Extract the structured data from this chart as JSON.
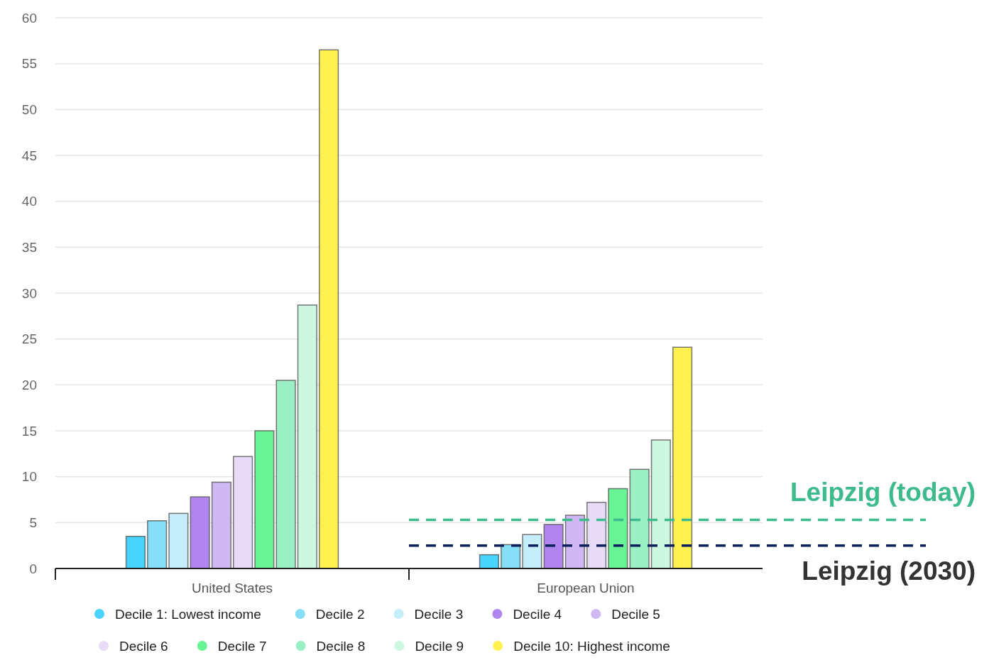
{
  "chart_data": {
    "type": "bar",
    "categories": [
      "United States",
      "European Union"
    ],
    "series": [
      {
        "name": "Decile 1: Lowest income",
        "color": "#48d4fc",
        "values": [
          3.5,
          1.5
        ]
      },
      {
        "name": "Decile 2",
        "color": "#86def7",
        "values": [
          5.2,
          2.6
        ]
      },
      {
        "name": "Decile 3",
        "color": "#c6edfa",
        "values": [
          6.0,
          3.7
        ]
      },
      {
        "name": "Decile 4",
        "color": "#b085ee",
        "values": [
          7.8,
          4.8
        ]
      },
      {
        "name": "Decile 5",
        "color": "#d0b8f4",
        "values": [
          9.4,
          5.8
        ]
      },
      {
        "name": "Decile 6",
        "color": "#e8dbf8",
        "values": [
          12.2,
          7.2
        ]
      },
      {
        "name": "Decile 7",
        "color": "#68f494",
        "values": [
          15.0,
          8.7
        ]
      },
      {
        "name": "Decile 8",
        "color": "#9af0c4",
        "values": [
          20.5,
          10.8
        ]
      },
      {
        "name": "Decile 9",
        "color": "#cdf7e1",
        "values": [
          28.7,
          14.0
        ]
      },
      {
        "name": "Decile 10: Highest income",
        "color": "#fff250",
        "values": [
          56.5,
          24.1
        ]
      }
    ],
    "ylim": [
      0,
      60
    ],
    "yticks": [
      0,
      5,
      10,
      15,
      20,
      25,
      30,
      35,
      40,
      45,
      50,
      55,
      60
    ],
    "grid": "y",
    "legend": "bottom",
    "ref_lines": [
      {
        "axis": "y",
        "value": 5.3,
        "label": "Leipzig (today)",
        "color": "#3dbb8c",
        "line_style": "dashed"
      },
      {
        "axis": "y",
        "value": 2.5,
        "label": "Leipzig (2030)",
        "color": "#0d1f5c",
        "line_style": "dashed"
      }
    ]
  }
}
